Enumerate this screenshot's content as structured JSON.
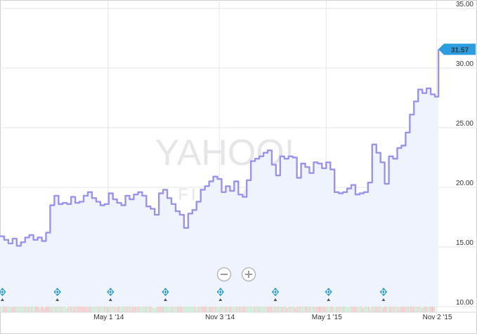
{
  "chart_data": {
    "type": "line",
    "title": "",
    "xlabel": "",
    "ylabel": "",
    "ylim": [
      10,
      35
    ],
    "y_ticks": [
      "10.00",
      "15.00",
      "20.00",
      "25.00",
      "30.00",
      "35.00"
    ],
    "x_ticks": [
      "May 1 '14",
      "Nov 3 '14",
      "May 1 '15",
      "Nov 2 '15"
    ],
    "x_range": [
      "2013-11-01",
      "2015-11-06"
    ],
    "grid": true,
    "line_color": "#9b92ee",
    "area_color": "#eef3fd",
    "current_value": "31.57",
    "current_value_color": "#2b9de0",
    "series": [
      {
        "x": [
          "2013-11-01",
          "2013-11-08",
          "2013-11-15",
          "2013-11-22",
          "2013-11-29",
          "2013-12-06",
          "2013-12-13",
          "2013-12-20",
          "2013-12-27",
          "2014-01-03",
          "2014-01-10",
          "2014-01-17",
          "2014-01-24",
          "2014-01-31",
          "2014-02-07",
          "2014-02-14",
          "2014-02-21",
          "2014-02-28",
          "2014-03-07",
          "2014-03-14",
          "2014-03-21",
          "2014-03-28",
          "2014-04-04",
          "2014-04-11",
          "2014-04-18",
          "2014-04-25",
          "2014-05-02",
          "2014-05-09",
          "2014-05-16",
          "2014-05-23",
          "2014-05-30",
          "2014-06-06",
          "2014-06-13",
          "2014-06-20",
          "2014-06-27",
          "2014-07-04",
          "2014-07-11",
          "2014-07-18",
          "2014-07-25",
          "2014-08-01",
          "2014-08-08",
          "2014-08-15",
          "2014-08-22",
          "2014-08-29",
          "2014-09-05",
          "2014-09-12",
          "2014-09-19",
          "2014-09-26",
          "2014-10-03",
          "2014-10-10",
          "2014-10-17",
          "2014-10-24",
          "2014-10-31",
          "2014-11-07",
          "2014-11-14",
          "2014-11-21",
          "2014-11-28",
          "2014-12-05",
          "2014-12-12",
          "2014-12-19",
          "2014-12-26",
          "2015-01-02",
          "2015-01-09",
          "2015-01-16",
          "2015-01-23",
          "2015-01-30",
          "2015-02-06",
          "2015-02-13",
          "2015-02-20",
          "2015-02-27",
          "2015-03-06",
          "2015-03-13",
          "2015-03-20",
          "2015-03-27",
          "2015-04-03",
          "2015-04-10",
          "2015-04-17",
          "2015-04-24",
          "2015-05-01",
          "2015-05-08",
          "2015-05-15",
          "2015-05-22",
          "2015-05-29",
          "2015-06-05",
          "2015-06-12",
          "2015-06-19",
          "2015-06-26",
          "2015-07-03",
          "2015-07-10",
          "2015-07-17",
          "2015-07-24",
          "2015-07-31",
          "2015-08-07",
          "2015-08-14",
          "2015-08-21",
          "2015-08-28",
          "2015-09-04",
          "2015-09-11",
          "2015-09-18",
          "2015-09-25",
          "2015-10-02",
          "2015-10-09",
          "2015-10-16",
          "2015-10-23",
          "2015-10-30",
          "2015-11-05"
        ],
        "values": [
          15.9,
          15.6,
          15.3,
          15.7,
          15.1,
          15.4,
          15.8,
          16.0,
          15.6,
          15.8,
          15.5,
          16.2,
          18.5,
          19.3,
          18.6,
          18.7,
          18.6,
          19.2,
          18.7,
          18.8,
          19.3,
          19.6,
          19.1,
          18.8,
          18.5,
          18.6,
          19.5,
          19.0,
          18.7,
          18.5,
          19.3,
          19.0,
          19.4,
          19.6,
          19.3,
          18.4,
          18.2,
          17.7,
          19.5,
          19.8,
          19.1,
          18.6,
          18.0,
          17.7,
          16.6,
          17.8,
          18.1,
          18.8,
          19.8,
          20.1,
          20.5,
          20.9,
          20.7,
          19.6,
          20.1,
          19.7,
          20.5,
          19.4,
          19.2,
          20.6,
          22.2,
          22.4,
          22.6,
          22.9,
          23.1,
          21.9,
          21.0,
          22.6,
          22.4,
          22.6,
          22.5,
          20.8,
          22.0,
          21.7,
          21.2,
          22.1,
          22.0,
          21.6,
          22.1,
          21.5,
          19.6,
          19.5,
          19.6,
          19.9,
          20.2,
          19.4,
          19.5,
          19.6,
          20.4,
          23.6,
          22.9,
          22.1,
          20.3,
          22.6,
          22.4,
          23.3,
          23.5,
          24.6,
          26.1,
          27.2,
          28.2,
          27.9,
          28.3,
          27.8,
          27.6,
          31.57
        ]
      }
    ]
  },
  "watermark": {
    "line1": "YAHOO!",
    "line2": "FINANCE"
  },
  "controls": {
    "zoom_out_icon": "minus-circle-icon",
    "zoom_in_icon": "plus-circle-icon",
    "dividend_icon": "dividend-diamond-icon",
    "dividend_label": "D"
  },
  "dividends": [
    "2013-11-05",
    "2014-02-05",
    "2014-05-05",
    "2014-08-05",
    "2014-11-05",
    "2015-02-05",
    "2015-05-05",
    "2015-08-05"
  ]
}
